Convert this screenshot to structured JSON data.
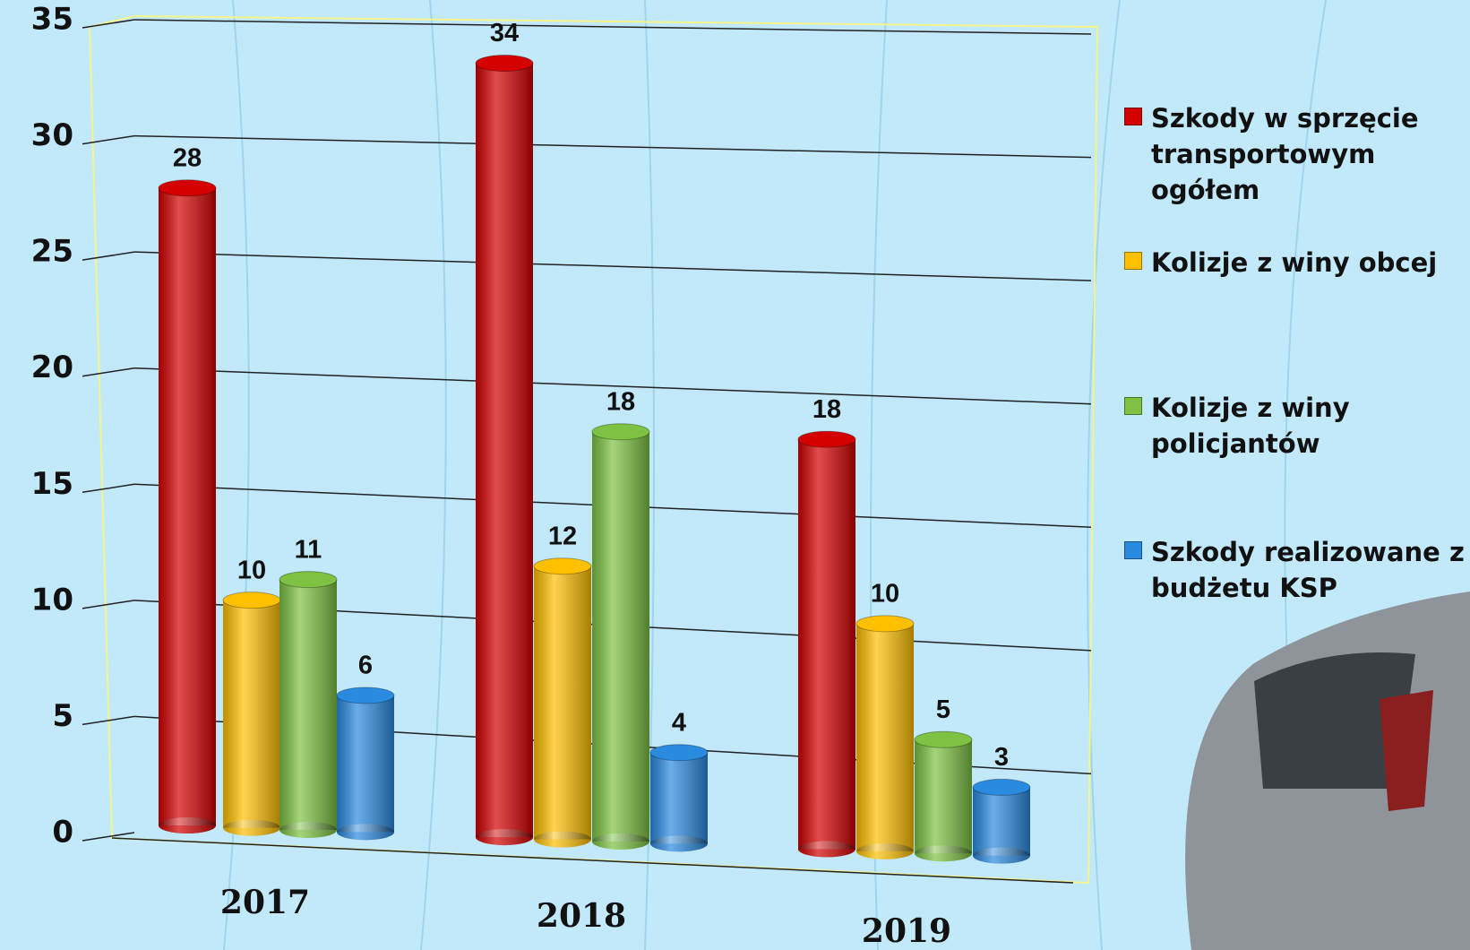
{
  "chart_data": {
    "type": "bar",
    "categories": [
      "2017",
      "2018",
      "2019"
    ],
    "series": [
      {
        "name": "Szkody w sprzęcie transportowym ogółem",
        "color": "#d40000",
        "values": [
          28,
          34,
          18
        ]
      },
      {
        "name": "Kolizje z winy obcej",
        "color": "#ffc000",
        "values": [
          10,
          12,
          10
        ]
      },
      {
        "name": "Kolizje z winy policjantów",
        "color": "#7dc242",
        "values": [
          11,
          18,
          5
        ]
      },
      {
        "name": "Szkody realizowane z budżetu KSP",
        "color": "#2a8ae0",
        "values": [
          6,
          4,
          3
        ]
      }
    ],
    "ylim": [
      0,
      35
    ],
    "yticks": [
      0,
      5,
      10,
      15,
      20,
      25,
      30,
      35
    ],
    "grid": true,
    "legend": "right"
  }
}
